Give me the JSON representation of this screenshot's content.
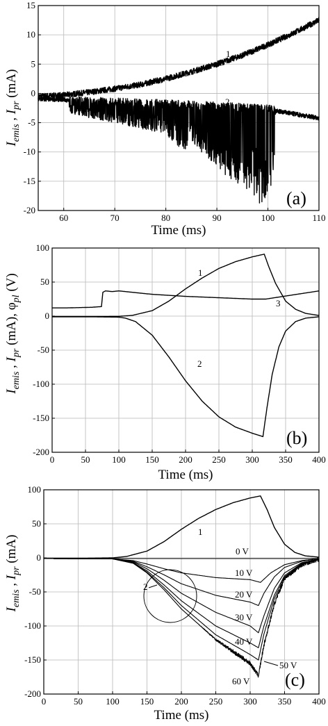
{
  "chart_data": [
    {
      "type": "line",
      "panel_label": "(a)",
      "xlabel": "Time (ms)",
      "ylabel_main": "I",
      "ylabel_sub1": "emis",
      "ylabel_sep": " , I",
      "ylabel_sub2": "pr",
      "ylabel_tail": " (mA)",
      "xlim": [
        55,
        110
      ],
      "ylim": [
        -20,
        15
      ],
      "xticks": [
        60,
        70,
        80,
        90,
        100,
        110
      ],
      "yticks": [
        -20,
        -15,
        -10,
        -5,
        0,
        5,
        10,
        15
      ],
      "grid": true,
      "series": [
        {
          "name": "1",
          "noise": 0.5,
          "x": [
            55,
            60,
            65,
            70,
            75,
            80,
            85,
            90,
            95,
            100,
            105,
            110
          ],
          "y": [
            -0.5,
            -0.3,
            0.2,
            0.8,
            1.5,
            2.5,
            3.7,
            5.0,
            6.5,
            8.3,
            10.3,
            12.5
          ]
        },
        {
          "name": "2",
          "noise": 0.4,
          "x": [
            55,
            60,
            61,
            70,
            80,
            90,
            100,
            101.5,
            110
          ],
          "y": [
            -1,
            -1,
            -1.3,
            -1.5,
            -1.8,
            -2.2,
            -2.6,
            -3,
            -4.2
          ],
          "spikes": [
            {
              "from": 61,
              "to": 101.5,
              "env_x": [
                61,
                70,
                80,
                83.5,
                85,
                90,
                95,
                97,
                99,
                100,
                101.5
              ],
              "env_y": [
                -3.5,
                -5,
                -7,
                -10,
                -8,
                -13,
                -16,
                -18.5,
                -19,
                -17,
                -15
              ]
            }
          ]
        }
      ]
    },
    {
      "type": "line",
      "panel_label": "(b)",
      "xlabel": "Time (ms)",
      "ylabel_main": "I",
      "ylabel_sub1": "emis",
      "ylabel_sep": " , I",
      "ylabel_sub2": "pr",
      "ylabel_tail": " (mA), φ",
      "ylabel_sub3": "pl",
      "ylabel_tail2": " (V)",
      "xlim": [
        0,
        400
      ],
      "ylim": [
        -200,
        100
      ],
      "xticks": [
        0,
        50,
        100,
        150,
        200,
        250,
        300,
        350,
        400
      ],
      "yticks": [
        -200,
        -150,
        -100,
        -50,
        0,
        50,
        100
      ],
      "grid": true,
      "series": [
        {
          "name": "1",
          "x": [
            0,
            50,
            100,
            120,
            150,
            175,
            200,
            225,
            250,
            275,
            300,
            318,
            325,
            335,
            350,
            365,
            380,
            400
          ],
          "y": [
            -0.5,
            -0.5,
            -0.3,
            1,
            8,
            22,
            40,
            56,
            70,
            80,
            87,
            91,
            72,
            48,
            22,
            10,
            4,
            1
          ]
        },
        {
          "name": "2",
          "x": [
            0,
            50,
            100,
            110,
            125,
            150,
            175,
            200,
            225,
            250,
            275,
            300,
            316,
            322,
            330,
            340,
            350,
            365,
            380,
            400
          ],
          "y": [
            -1,
            -1,
            -1.5,
            -3,
            -8,
            -28,
            -60,
            -95,
            -125,
            -148,
            -163,
            -172,
            -177,
            -135,
            -85,
            -45,
            -22,
            -8,
            -3,
            -1
          ]
        },
        {
          "name": "3",
          "x": [
            0,
            20,
            60,
            74,
            76,
            80,
            90,
            100,
            120,
            150,
            200,
            250,
            300,
            320,
            340,
            360,
            380,
            400
          ],
          "y": [
            12,
            12,
            13,
            14,
            35,
            37,
            36,
            37,
            35,
            32,
            29,
            27,
            25,
            25,
            28,
            31,
            34,
            37
          ]
        }
      ]
    },
    {
      "type": "line",
      "panel_label": "(c)",
      "xlabel": "Time (ms)",
      "ylabel_main": "I",
      "ylabel_sub1": "emis",
      "ylabel_sep": " , I",
      "ylabel_sub2": "pr",
      "ylabel_tail": " (mA)",
      "xlim": [
        0,
        400
      ],
      "ylim": [
        -200,
        100
      ],
      "xticks": [
        0,
        50,
        100,
        150,
        200,
        250,
        300,
        350,
        400
      ],
      "yticks": [
        -200,
        -150,
        -100,
        -50,
        0,
        50,
        100
      ],
      "grid": true,
      "series": [
        {
          "name": "1",
          "x": [
            0,
            50,
            100,
            120,
            150,
            175,
            200,
            225,
            250,
            275,
            300,
            315,
            325,
            335,
            350,
            365,
            380,
            400
          ],
          "y": [
            -0.5,
            -0.5,
            0,
            2,
            10,
            24,
            42,
            58,
            71,
            81,
            88,
            91,
            70,
            45,
            20,
            8,
            3,
            1
          ]
        },
        {
          "name": "0 V",
          "x": [
            0,
            100,
            200,
            300,
            400
          ],
          "y": [
            -1,
            -1,
            -1,
            -1,
            -1
          ]
        },
        {
          "name": "10 V",
          "x": [
            0,
            100,
            130,
            150,
            175,
            200,
            250,
            300,
            315,
            330,
            350,
            375,
            400
          ],
          "y": [
            -1,
            -1.5,
            -4,
            -9,
            -16,
            -22,
            -29,
            -32,
            -36,
            -22,
            -10,
            -4,
            -1
          ]
        },
        {
          "name": "20 V",
          "x": [
            0,
            100,
            130,
            150,
            175,
            200,
            250,
            300,
            312,
            320,
            335,
            350,
            375,
            400
          ],
          "y": [
            -1,
            -1.5,
            -5,
            -13,
            -25,
            -38,
            -55,
            -65,
            -70,
            -52,
            -28,
            -14,
            -5,
            -1
          ]
        },
        {
          "name": "30 V",
          "x": [
            0,
            100,
            130,
            150,
            175,
            200,
            250,
            300,
            312,
            320,
            335,
            350,
            375,
            400
          ],
          "y": [
            -1,
            -1.5,
            -6,
            -16,
            -33,
            -52,
            -80,
            -100,
            -110,
            -85,
            -45,
            -22,
            -7,
            -2
          ]
        },
        {
          "name": "40 V",
          "x": [
            0,
            100,
            130,
            150,
            175,
            200,
            250,
            300,
            312,
            320,
            335,
            350,
            375,
            400
          ],
          "y": [
            -1,
            -1.5,
            -7,
            -19,
            -40,
            -63,
            -100,
            -125,
            -132,
            -100,
            -55,
            -26,
            -8,
            -2
          ]
        },
        {
          "name": "50 V",
          "x": [
            0,
            100,
            130,
            150,
            175,
            200,
            250,
            300,
            312,
            320,
            335,
            350,
            375,
            400
          ],
          "y": [
            -1,
            -1.5,
            -7,
            -21,
            -44,
            -70,
            -113,
            -142,
            -150,
            -112,
            -60,
            -28,
            -9,
            -2
          ]
        },
        {
          "name": "60 V",
          "noise": 3,
          "x": [
            0,
            100,
            130,
            150,
            175,
            200,
            250,
            300,
            312,
            320,
            335,
            350,
            375,
            400
          ],
          "y": [
            -1,
            -1.5,
            -8,
            -22,
            -47,
            -75,
            -120,
            -155,
            -173,
            -128,
            -68,
            -30,
            -10,
            -2
          ]
        }
      ],
      "annotations": [
        "1",
        "2",
        "0 V",
        "10 V",
        "20 V",
        "30 V",
        "40 V",
        "50 V",
        "60 V"
      ]
    }
  ]
}
